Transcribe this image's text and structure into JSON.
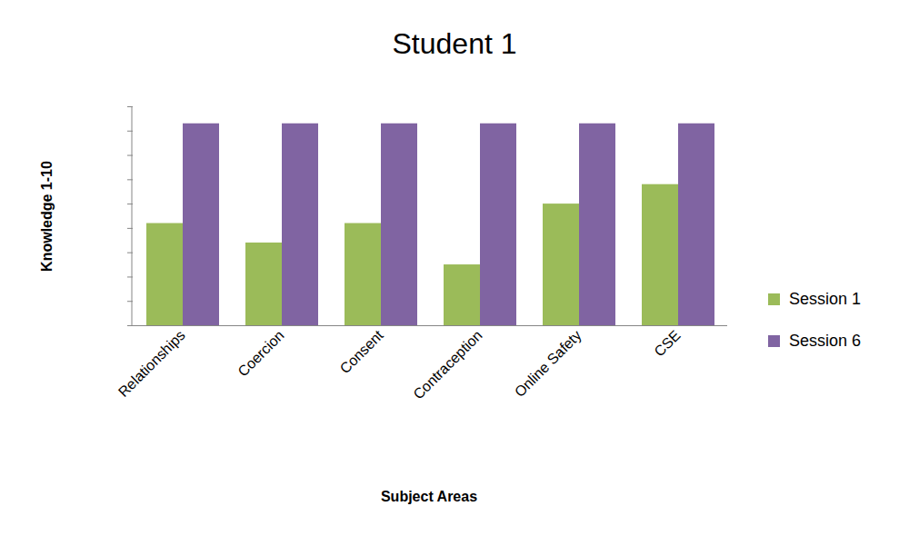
{
  "chart_data": {
    "type": "bar",
    "title": "Student 1",
    "x_label": "Subject Areas",
    "y_label": "Knowledge 1-10",
    "categories": [
      "Relationships",
      "Coercion",
      "Consent",
      "Contraception",
      "Online Safety",
      "CSE"
    ],
    "series": [
      {
        "name": "Session 1",
        "color": "#9bbb59",
        "values": [
          4.2,
          3.4,
          4.2,
          2.5,
          5.0,
          5.8
        ]
      },
      {
        "name": "Session 6",
        "color": "#8064a2",
        "values": [
          8.3,
          8.3,
          8.3,
          8.3,
          8.3,
          8.3
        ]
      }
    ],
    "ylim": [
      0,
      9
    ],
    "yticks": [
      0,
      1,
      2,
      3,
      4,
      5,
      6,
      7,
      8,
      9
    ],
    "grid": false,
    "legend": "right",
    "tick_labels": "x"
  }
}
